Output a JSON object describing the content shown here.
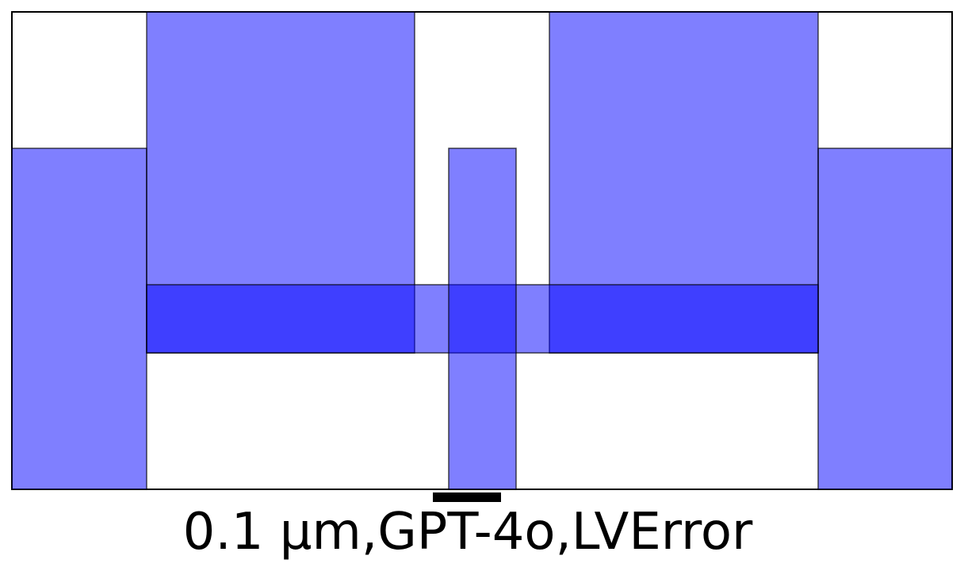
{
  "caption": "0.1 µm,GPT-4o,LVError",
  "colors": {
    "shape_fill": "#0000ff",
    "shape_fill_opacity": 0.5,
    "shape_stroke": "#000000",
    "frame_stroke": "#000000",
    "scale_bar": "#000000",
    "background": "#ffffff"
  }
}
